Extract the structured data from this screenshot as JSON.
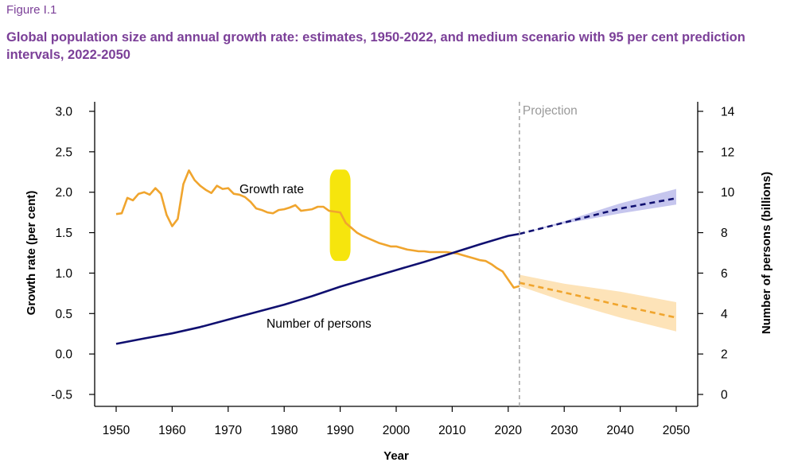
{
  "figure_label": "Figure I.1",
  "title": "Global population size and annual growth rate: estimates, 1950-2022, and medium scenario with 95 per cent prediction intervals, 2022-2050",
  "colors": {
    "title": "#7b3f98",
    "growth": "#f0a52e",
    "growth_band": "#fde3b8",
    "population": "#101070",
    "population_band": "#c6c6ee",
    "highlight": "#f5e400",
    "projection_line": "#aaaaaa"
  },
  "chart_data": {
    "type": "line",
    "xlabel": "Year",
    "ylabel_left": "Growth rate (per cent)",
    "ylabel_right": "Number of persons (billions)",
    "xlim": [
      1950,
      2050
    ],
    "ylim_left": [
      -0.5,
      3.0
    ],
    "ylim_right": [
      0,
      14
    ],
    "x_ticks": [
      "1950",
      "1960",
      "1970",
      "1980",
      "1990",
      "2000",
      "2010",
      "2020",
      "2030",
      "2040",
      "2050"
    ],
    "y_left_ticks": [
      "-0.5",
      "0.0",
      "0.5",
      "1.0",
      "1.5",
      "2.0",
      "2.5",
      "3.0"
    ],
    "y_right_ticks": [
      "0",
      "2",
      "4",
      "6",
      "8",
      "10",
      "12",
      "14"
    ],
    "projection_year": 2022,
    "projection_label": "Projection",
    "growth_label": "Growth rate",
    "population_label": "Number of persons",
    "series": [
      {
        "name": "Growth rate",
        "axis": "left",
        "style": "solid",
        "x": [
          1950,
          1951,
          1952,
          1953,
          1954,
          1955,
          1956,
          1957,
          1958,
          1959,
          1960,
          1961,
          1962,
          1963,
          1964,
          1965,
          1966,
          1967,
          1968,
          1969,
          1970,
          1971,
          1972,
          1973,
          1974,
          1975,
          1976,
          1977,
          1978,
          1979,
          1980,
          1981,
          1982,
          1983,
          1984,
          1985,
          1986,
          1987,
          1988,
          1989,
          1990,
          1991,
          1992,
          1993,
          1994,
          1995,
          1996,
          1997,
          1998,
          1999,
          2000,
          2001,
          2002,
          2003,
          2004,
          2005,
          2006,
          2007,
          2008,
          2009,
          2010,
          2011,
          2012,
          2013,
          2014,
          2015,
          2016,
          2017,
          2018,
          2019,
          2020,
          2021,
          2022
        ],
        "y": [
          1.73,
          1.74,
          1.93,
          1.9,
          1.98,
          2.0,
          1.97,
          2.05,
          1.98,
          1.72,
          1.58,
          1.67,
          2.1,
          2.27,
          2.15,
          2.08,
          2.03,
          1.99,
          2.08,
          2.04,
          2.05,
          1.98,
          1.97,
          1.94,
          1.88,
          1.8,
          1.78,
          1.75,
          1.74,
          1.78,
          1.79,
          1.81,
          1.84,
          1.77,
          1.78,
          1.79,
          1.82,
          1.82,
          1.77,
          1.76,
          1.75,
          1.62,
          1.56,
          1.5,
          1.46,
          1.43,
          1.4,
          1.37,
          1.35,
          1.33,
          1.33,
          1.31,
          1.29,
          1.28,
          1.27,
          1.27,
          1.26,
          1.26,
          1.26,
          1.26,
          1.25,
          1.24,
          1.22,
          1.2,
          1.18,
          1.16,
          1.15,
          1.11,
          1.06,
          1.02,
          0.92,
          0.82,
          0.84
        ]
      },
      {
        "name": "Growth rate projection",
        "axis": "left",
        "style": "dashed",
        "x": [
          2022,
          2030,
          2040,
          2050
        ],
        "y": [
          0.88,
          0.76,
          0.6,
          0.45
        ],
        "band_lower": [
          0.84,
          0.65,
          0.45,
          0.28
        ],
        "band_upper": [
          0.98,
          0.87,
          0.77,
          0.64
        ]
      },
      {
        "name": "Number of persons",
        "axis": "right",
        "style": "solid",
        "x": [
          1950,
          1955,
          1960,
          1965,
          1970,
          1975,
          1980,
          1985,
          1990,
          1995,
          2000,
          2005,
          2010,
          2015,
          2020,
          2022
        ],
        "y": [
          2.5,
          2.77,
          3.02,
          3.33,
          3.7,
          4.07,
          4.44,
          4.86,
          5.33,
          5.74,
          6.15,
          6.55,
          6.99,
          7.43,
          7.84,
          7.94
        ]
      },
      {
        "name": "Number of persons projection",
        "axis": "right",
        "style": "dashed",
        "x": [
          2022,
          2030,
          2040,
          2050
        ],
        "y": [
          7.94,
          8.5,
          9.19,
          9.7
        ],
        "band_lower": [
          7.94,
          8.45,
          8.95,
          9.39
        ],
        "band_upper": [
          7.94,
          8.57,
          9.45,
          10.16
        ]
      }
    ],
    "highlight_year": 1990,
    "highlight_range_left": [
      1.15,
      2.28
    ]
  }
}
